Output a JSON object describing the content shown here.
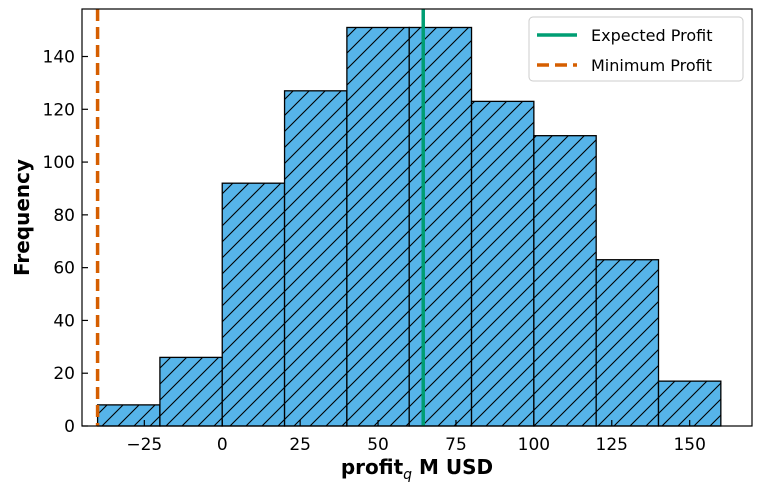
{
  "chart_data": {
    "type": "histogram",
    "xlabel_main": "profit",
    "xlabel_sub": "q",
    "xlabel_rest": " M USD",
    "ylabel": "Frequency",
    "xlim": [
      -45,
      170
    ],
    "ylim": [
      0,
      158
    ],
    "xticks": [
      -25,
      0,
      25,
      50,
      75,
      100,
      125,
      150
    ],
    "xtick_labels": [
      "−25",
      "0",
      "25",
      "50",
      "75",
      "100",
      "125",
      "150"
    ],
    "yticks": [
      0,
      20,
      40,
      60,
      80,
      100,
      120,
      140
    ],
    "ytick_labels": [
      "0",
      "20",
      "40",
      "60",
      "80",
      "100",
      "120",
      "140"
    ],
    "bins": [
      {
        "x0": -40,
        "x1": -20,
        "count": 8
      },
      {
        "x0": -20,
        "x1": 0,
        "count": 26
      },
      {
        "x0": 0,
        "x1": 20,
        "count": 92
      },
      {
        "x0": 20,
        "x1": 40,
        "count": 127
      },
      {
        "x0": 40,
        "x1": 60,
        "count": 151
      },
      {
        "x0": 60,
        "x1": 80,
        "count": 151
      },
      {
        "x0": 80,
        "x1": 100,
        "count": 123
      },
      {
        "x0": 100,
        "x1": 120,
        "count": 110
      },
      {
        "x0": 120,
        "x1": 140,
        "count": 63
      },
      {
        "x0": 140,
        "x1": 160,
        "count": 17
      }
    ],
    "bar_color": "#56B4E9",
    "bar_edge_color": "#000000",
    "hatch": "diagonal",
    "lines": [
      {
        "name": "Expected Profit",
        "x": 64.5,
        "color": "#009E73",
        "style": "solid"
      },
      {
        "name": "Minimum Profit",
        "x": -40,
        "color": "#D55E00",
        "style": "dashed"
      }
    ],
    "legend_position": "top-right"
  }
}
